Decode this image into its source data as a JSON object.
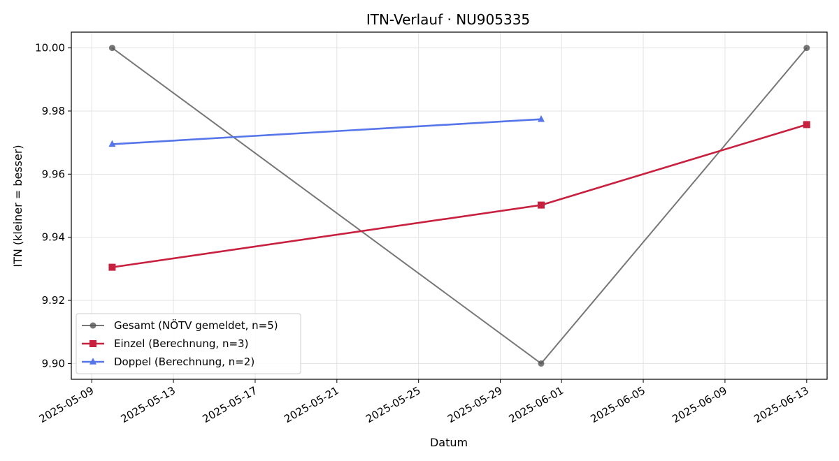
{
  "chart_data": {
    "type": "line",
    "title": "ITN-Verlauf · NU905335",
    "xlabel": "Datum",
    "ylabel": "ITN  (kleiner = besser)",
    "x_ticks": [
      "2025-05-09",
      "2025-05-13",
      "2025-05-17",
      "2025-05-21",
      "2025-05-25",
      "2025-05-29",
      "2025-06-01",
      "2025-06-05",
      "2025-06-09",
      "2025-06-13"
    ],
    "xlim": [
      "2025-05-08",
      "2025-06-14"
    ],
    "y_ticks": [
      "9.90",
      "9.92",
      "9.94",
      "9.96",
      "9.98",
      "10.00"
    ],
    "ylim": [
      9.895,
      10.005
    ],
    "grid": true,
    "legend_position": "lower-left",
    "series": [
      {
        "name": "Gesamt (NÖTV gemeldet, n=5)",
        "color": "#555555",
        "marker": "circle",
        "points": [
          {
            "x": "2025-05-10",
            "y": 10.0
          },
          {
            "x": "2025-05-31",
            "y": 9.9
          },
          {
            "x": "2025-06-13",
            "y": 10.0
          }
        ]
      },
      {
        "name": "Einzel (Berechnung, n=3)",
        "color": "#c8203f",
        "marker": "square",
        "points": [
          {
            "x": "2025-05-10",
            "y": 9.9305
          },
          {
            "x": "2025-05-31",
            "y": 9.9502
          },
          {
            "x": "2025-06-13",
            "y": 9.9757
          }
        ]
      },
      {
        "name": "Doppel (Berechnung, n=2)",
        "color": "#5575e9",
        "marker": "triangle",
        "points": [
          {
            "x": "2025-05-10",
            "y": 9.9695
          },
          {
            "x": "2025-05-31",
            "y": 9.9774
          }
        ]
      }
    ]
  }
}
